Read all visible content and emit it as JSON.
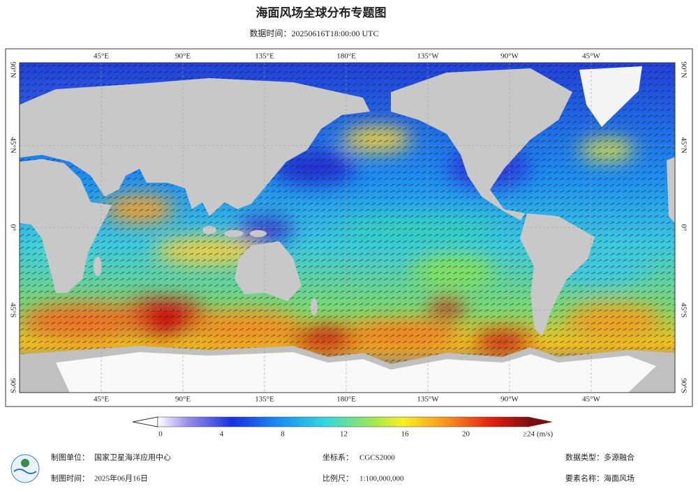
{
  "header": {
    "title": "海面风场全球分布专题图",
    "subtitle": "数据时间：20250616T18:00:00 UTC"
  },
  "map": {
    "longitude_labels": [
      "45°E",
      "90°E",
      "135°E",
      "180°E",
      "135°W",
      "90°W",
      "45°W"
    ],
    "latitude_labels": [
      "90°N",
      "45°N",
      "0°",
      "45°S",
      "90°S"
    ]
  },
  "colorbar": {
    "range": [
      0,
      24
    ],
    "ticks": [
      0,
      4,
      8,
      12,
      16,
      20
    ],
    "max_label": "≥24",
    "unit": "(m/s)"
  },
  "footer": [
    {
      "label": "制图单位：",
      "value": "国家卫星海洋应用中心"
    },
    {
      "label": "坐标系：",
      "value": "CGCS2000"
    },
    {
      "label": "数据类型：",
      "value": "多源融合"
    },
    {
      "label": "制图时间：",
      "value": "2025年06月16日"
    },
    {
      "label": "比例尺：",
      "value": "1:100,000,000"
    },
    {
      "label": "要素名称：",
      "value": "海面风场"
    }
  ]
}
